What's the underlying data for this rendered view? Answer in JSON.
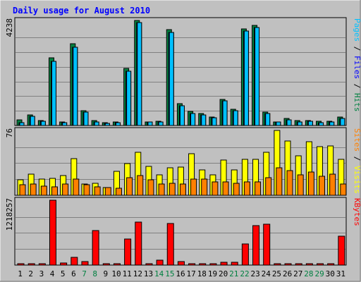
{
  "chart_data": {
    "type": "bar",
    "title": "Daily usage for August 2010",
    "days": [
      {
        "label": "1",
        "weekend": false
      },
      {
        "label": "2",
        "weekend": false
      },
      {
        "label": "3",
        "weekend": false
      },
      {
        "label": "4",
        "weekend": false
      },
      {
        "label": "5",
        "weekend": false
      },
      {
        "label": "6",
        "weekend": false
      },
      {
        "label": "7",
        "weekend": true
      },
      {
        "label": "8",
        "weekend": true
      },
      {
        "label": "9",
        "weekend": false
      },
      {
        "label": "10",
        "weekend": false
      },
      {
        "label": "11",
        "weekend": false
      },
      {
        "label": "12",
        "weekend": false
      },
      {
        "label": "13",
        "weekend": false
      },
      {
        "label": "14",
        "weekend": true
      },
      {
        "label": "15",
        "weekend": true
      },
      {
        "label": "16",
        "weekend": false
      },
      {
        "label": "17",
        "weekend": false
      },
      {
        "label": "18",
        "weekend": false
      },
      {
        "label": "19",
        "weekend": false
      },
      {
        "label": "20",
        "weekend": false
      },
      {
        "label": "21",
        "weekend": true
      },
      {
        "label": "22",
        "weekend": true
      },
      {
        "label": "23",
        "weekend": false
      },
      {
        "label": "24",
        "weekend": false
      },
      {
        "label": "25",
        "weekend": false
      },
      {
        "label": "26",
        "weekend": false
      },
      {
        "label": "27",
        "weekend": false
      },
      {
        "label": "28",
        "weekend": true
      },
      {
        "label": "29",
        "weekend": true
      },
      {
        "label": "30",
        "weekend": false
      },
      {
        "label": "31",
        "weekend": false
      }
    ],
    "panels": [
      {
        "id": "pages-files-hits",
        "scale_max": 4238,
        "scale_label": "4238",
        "legend": [
          {
            "text": "Pages",
            "color": "#00C0FF"
          },
          {
            "text": " / ",
            "color": "#000000"
          },
          {
            "text": "Files",
            "color": "#0000FF"
          },
          {
            "text": " / ",
            "color": "#000000"
          },
          {
            "text": "Hits",
            "color": "#008040"
          }
        ],
        "series": [
          {
            "name": "Hits",
            "color": "#008040",
            "values": [
              230,
              430,
              200,
              2720,
              130,
              3300,
              600,
              200,
              100,
              150,
              2310,
              4238,
              150,
              180,
              3880,
              870,
              560,
              480,
              340,
              1050,
              640,
              3900,
              4030,
              530,
              150,
              280,
              190,
              210,
              160,
              160,
              330
            ]
          },
          {
            "name": "Files",
            "color": "#0000FF",
            "values": [
              120,
              380,
              180,
              2600,
              100,
              3150,
              550,
              150,
              80,
              120,
              2200,
              4150,
              130,
              150,
              3750,
              800,
              480,
              430,
              300,
              1000,
              600,
              3800,
              3950,
              480,
              130,
              230,
              150,
              170,
              120,
              140,
              280
            ]
          },
          {
            "name": "Pages",
            "color": "#00C0FF",
            "values": [
              120,
              380,
              180,
              2600,
              100,
              3150,
              550,
              150,
              80,
              120,
              2200,
              4150,
              130,
              150,
              3750,
              800,
              480,
              430,
              300,
              1000,
              600,
              3800,
              3950,
              480,
              130,
              230,
              150,
              170,
              120,
              140,
              280
            ]
          }
        ]
      },
      {
        "id": "visits-sites",
        "scale_max": 76,
        "scale_label": "76",
        "legend": [
          {
            "text": "Sites",
            "color": "#FF8000"
          },
          {
            "text": " / ",
            "color": "#000000"
          },
          {
            "text": "Visits",
            "color": "#FFFF00"
          }
        ],
        "series": [
          {
            "name": "Visits",
            "color": "#FFFF00",
            "values": [
              18,
              25,
              19,
              20,
              23,
              43,
              13,
              14,
              9,
              28,
              37,
              50,
              34,
              24,
              32,
              33,
              49,
              30,
              24,
              41,
              30,
              42,
              42,
              50,
              76,
              64,
              46,
              63,
              57,
              58,
              42
            ]
          },
          {
            "name": "Sites",
            "color": "#FF8000",
            "values": [
              12,
              13,
              11,
              10,
              13,
              19,
              12,
              10,
              9,
              8,
              21,
              23,
              18,
              13,
              14,
              13,
              19,
              19,
              16,
              16,
              14,
              16,
              16,
              21,
              32,
              29,
              24,
              27,
              22,
              25,
              13
            ]
          }
        ]
      },
      {
        "id": "kbytes",
        "scale_max": 1218257,
        "scale_label": "1218257",
        "legend": [
          {
            "text": "KBytes",
            "color": "#FF0000"
          }
        ],
        "series": [
          {
            "name": "KBytes",
            "color": "#FF0000",
            "values": [
              10000,
              10000,
              10000,
              1218257,
              40000,
              150000,
              60000,
              650000,
              10000,
              20000,
              490000,
              810000,
              20000,
              90000,
              780000,
              70000,
              20000,
              25000,
              30000,
              50000,
              50000,
              400000,
              740000,
              770000,
              10000,
              10000,
              15000,
              10000,
              10000,
              20000,
              540000
            ]
          }
        ]
      }
    ],
    "colors": {
      "background": "#C0C0C0",
      "title": "#0000FF",
      "grid": "#808080",
      "weekday_label": "#000000",
      "weekend_label": "#008040"
    }
  }
}
